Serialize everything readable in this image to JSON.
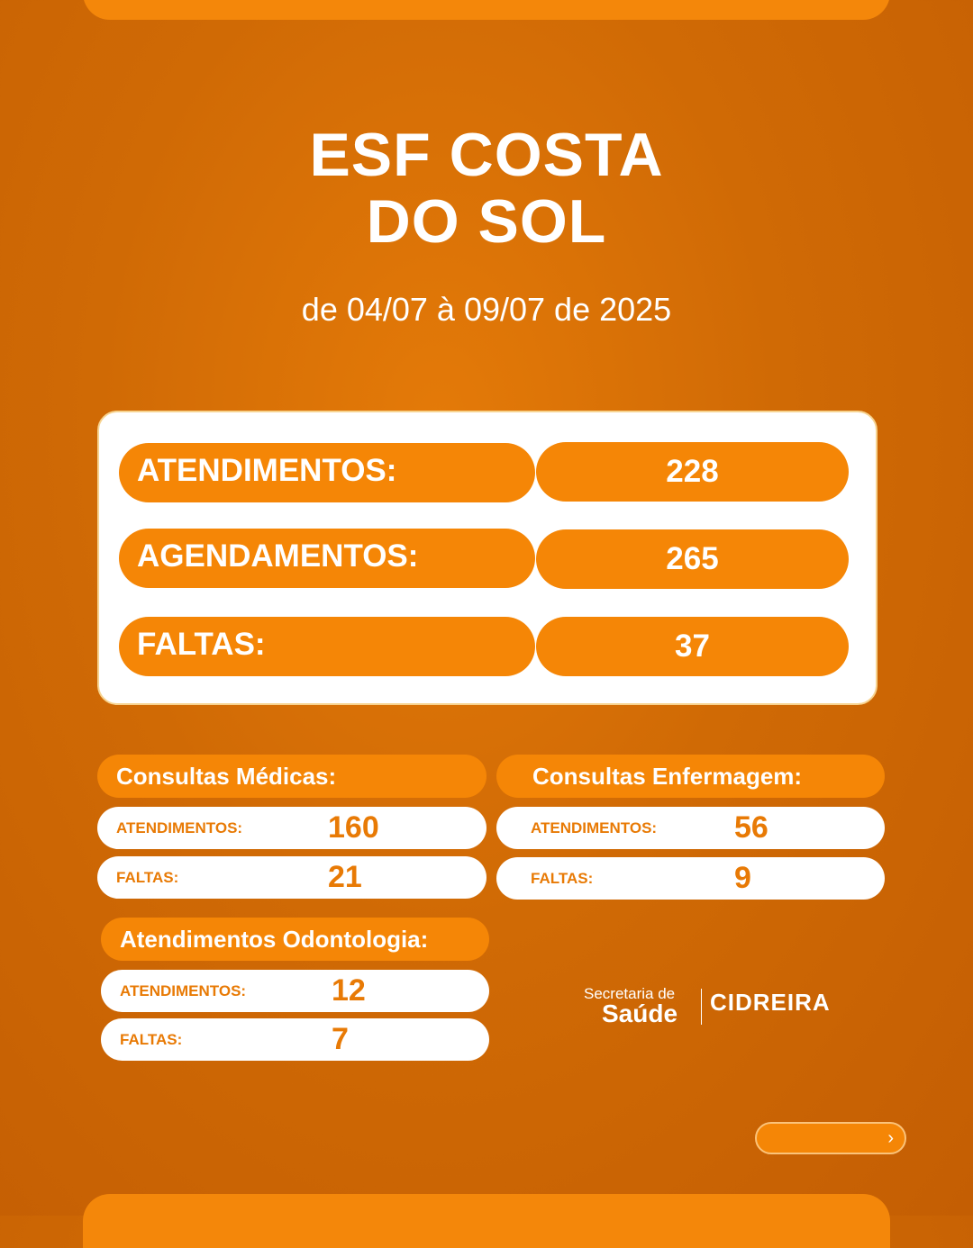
{
  "title_line1": "ESF COSTA",
  "title_line2": "DO SOL",
  "date_range": "de 04/07 à 09/07 de 2025",
  "summary": [
    {
      "label": "ATENDIMENTOS:",
      "value": "228"
    },
    {
      "label": "AGENDAMENTOS:",
      "value": "265"
    },
    {
      "label": "FALTAS:",
      "value": "37"
    }
  ],
  "medicas": {
    "heading": "Consultas Médicas:",
    "atendimentos_label": "ATENDIMENTOS:",
    "atendimentos_value": "160",
    "faltas_label": "FALTAS:",
    "faltas_value": "21"
  },
  "enfermagem": {
    "heading": "Consultas Enfermagem:",
    "atendimentos_label": "ATENDIMENTOS:",
    "atendimentos_value": "56",
    "faltas_label": "FALTAS:",
    "faltas_value": "9"
  },
  "odontologia": {
    "heading": "Atendimentos Odontologia:",
    "atendimentos_label": "ATENDIMENTOS:",
    "atendimentos_value": "12",
    "faltas_label": "FALTAS:",
    "faltas_value": "7"
  },
  "logo": {
    "line1": "Secretaria de",
    "line2": "Saúde",
    "city": "CIDREIRA"
  },
  "colors": {
    "accent": "#f58606",
    "background": "#d06a05",
    "text_on_white": "#e87a05"
  },
  "icons": {
    "next": "chevron-right-icon"
  }
}
